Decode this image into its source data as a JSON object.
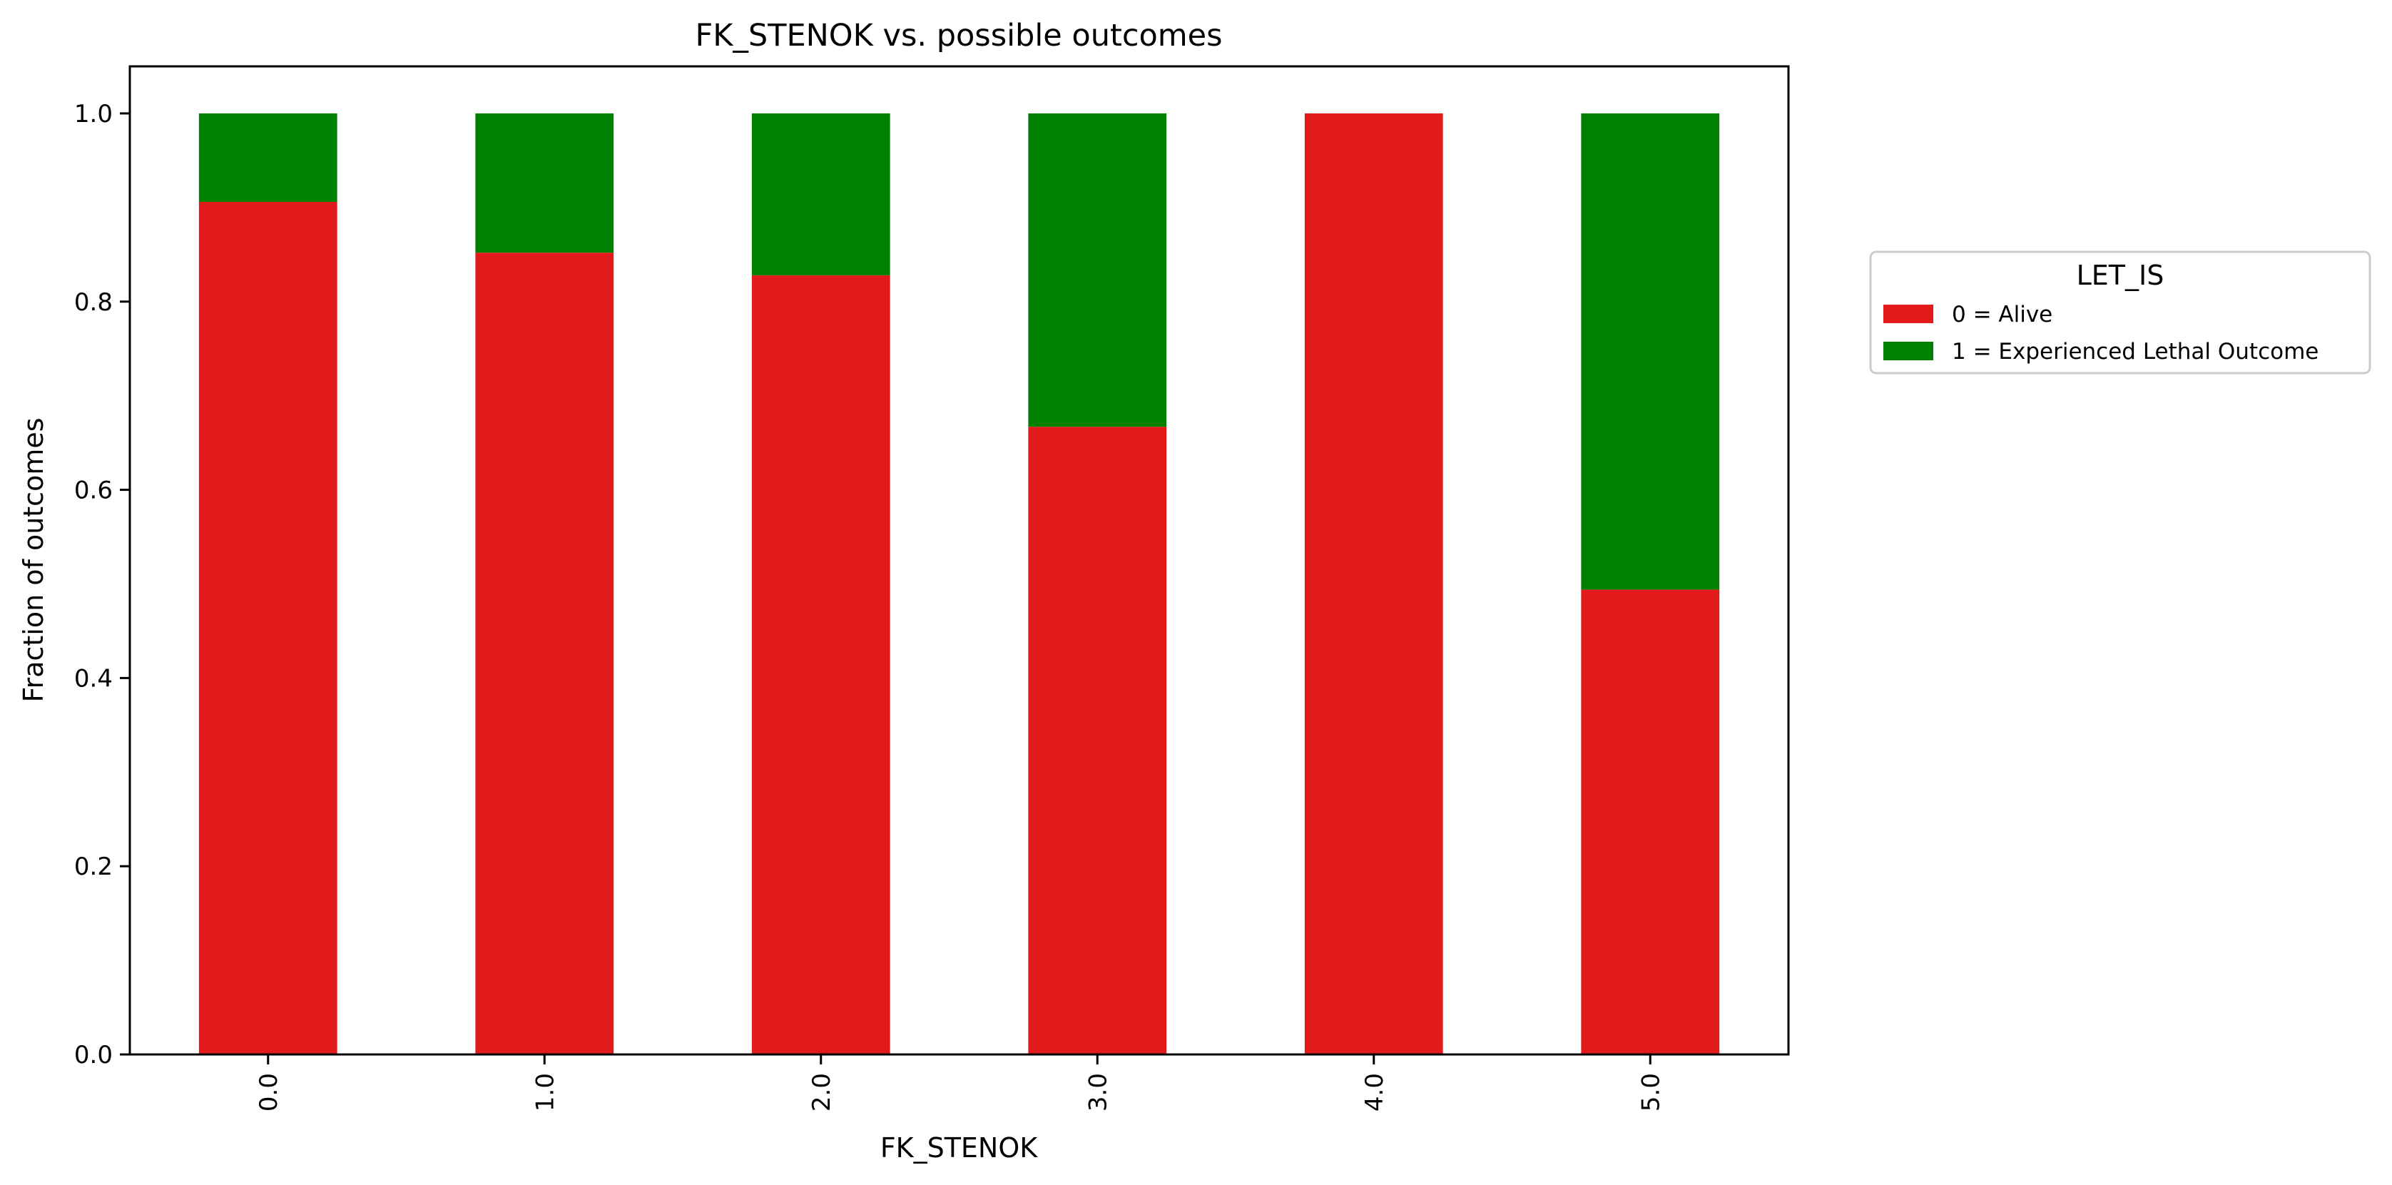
{
  "chart_data": {
    "type": "bar",
    "stacked": true,
    "title": "FK_STENOK vs. possible outcomes",
    "xlabel": "FK_STENOK",
    "ylabel": "Fraction of outcomes",
    "categories": [
      "0.0",
      "1.0",
      "2.0",
      "3.0",
      "4.0",
      "5.0"
    ],
    "ylim": [
      0,
      1.05
    ],
    "yticks": [
      "0.0",
      "0.2",
      "0.4",
      "0.6",
      "0.8",
      "1.0"
    ],
    "grid": false,
    "legend": {
      "title": "LET_IS",
      "placement": "outside-right"
    },
    "series": [
      {
        "name": "0 = Alive",
        "color": "#e31a1c",
        "values": [
          0.906,
          0.852,
          0.828,
          0.667,
          1.0,
          0.494
        ]
      },
      {
        "name": "1 = Experienced Lethal Outcome",
        "color": "#008000",
        "values": [
          0.094,
          0.148,
          0.172,
          0.333,
          0.0,
          0.506
        ]
      }
    ]
  }
}
